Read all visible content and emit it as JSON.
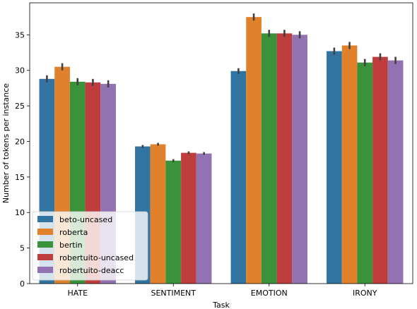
{
  "chart_data": {
    "type": "bar",
    "title": "",
    "xlabel": "Task",
    "ylabel": "Number of tokens per instance",
    "categories": [
      "HATE",
      "SENTIMENT",
      "EMOTION",
      "IRONY"
    ],
    "ylim": [
      0,
      39.5
    ],
    "yticks": [
      0,
      5,
      10,
      15,
      20,
      25,
      30,
      35
    ],
    "grid": false,
    "legend_position": "lower-left",
    "series": [
      {
        "name": "beto-uncased",
        "color": "#3274a1",
        "values": [
          28.8,
          19.3,
          29.9,
          32.7
        ],
        "ci": [
          0.5,
          0.2,
          0.4,
          0.5
        ]
      },
      {
        "name": "roberta",
        "color": "#e1812c",
        "values": [
          30.5,
          19.6,
          37.5,
          33.5
        ],
        "ci": [
          0.5,
          0.2,
          0.5,
          0.5
        ]
      },
      {
        "name": "bertin",
        "color": "#3a923a",
        "values": [
          28.4,
          17.3,
          35.2,
          31.1
        ],
        "ci": [
          0.5,
          0.2,
          0.5,
          0.5
        ]
      },
      {
        "name": "robertuito-uncased",
        "color": "#c03d3e",
        "values": [
          28.3,
          18.4,
          35.2,
          31.9
        ],
        "ci": [
          0.5,
          0.2,
          0.5,
          0.5
        ]
      },
      {
        "name": "robertuito-deacc",
        "color": "#9372b2",
        "values": [
          28.1,
          18.3,
          35.0,
          31.4
        ],
        "ci": [
          0.5,
          0.2,
          0.5,
          0.5
        ]
      }
    ]
  }
}
